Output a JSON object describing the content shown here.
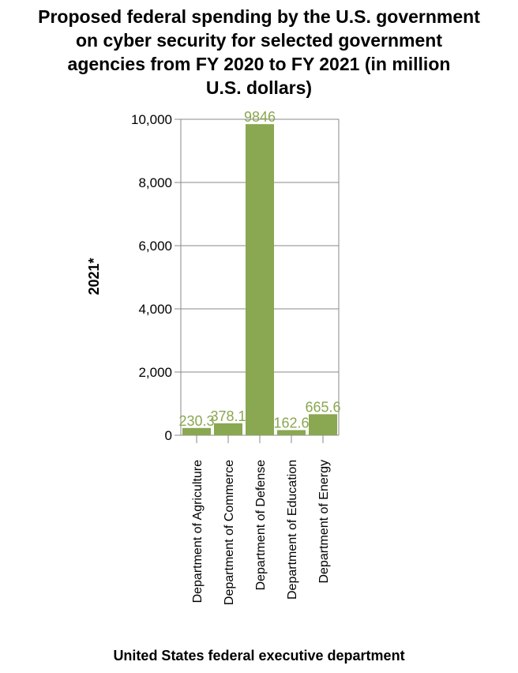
{
  "chart_data": {
    "type": "bar",
    "title_lines": [
      "Proposed federal spending by the U.S. government",
      "on cyber security for selected government",
      "agencies from FY 2020 to FY 2021 (in million",
      "U.S. dollars)"
    ],
    "xlabel": "United States federal executive department",
    "ylabel": "2021*",
    "categories": [
      "Department of Agriculture",
      "Department of Commerce",
      "Department of Defense",
      "Department of Education",
      "Department of Energy"
    ],
    "values": [
      230.3,
      378.1,
      9846,
      162.6,
      665.6
    ],
    "data_labels": [
      "230.3",
      "378.1",
      "9846",
      "162.6",
      "665.6"
    ],
    "ylim": [
      0,
      10000
    ],
    "yticks": [
      0,
      2000,
      4000,
      6000,
      8000,
      10000
    ],
    "ytick_labels": [
      "0",
      "2,000",
      "4,000",
      "6,000",
      "8,000",
      "10,000"
    ],
    "grid": true,
    "legend": "none",
    "colors": {
      "bar": "#8aa751",
      "label": "#8aa751",
      "grid": "#888888"
    }
  }
}
